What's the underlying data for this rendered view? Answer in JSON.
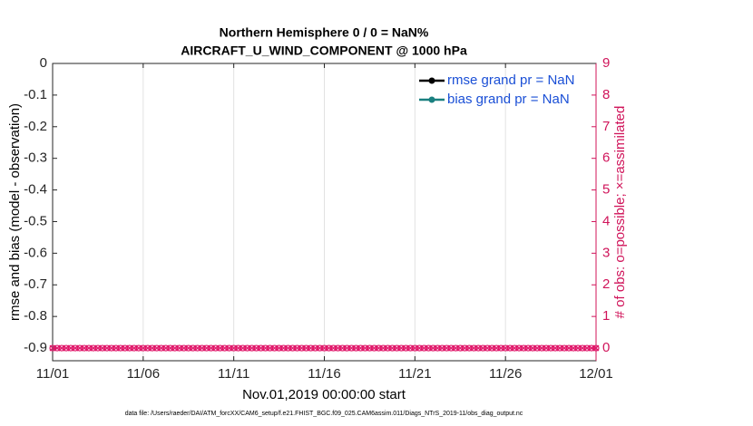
{
  "chart_data": {
    "type": "line",
    "title": [
      "Northern Hemisphere 0 / 0 = NaN%",
      "AIRCRAFT_U_WIND_COMPONENT @ 1000 hPa"
    ],
    "ylabel": "rmse and bias (model - observation)",
    "y2label": "# of obs: o=possible; ×=assimilated",
    "xlabel": "Nov.01,2019 00:00:00 start",
    "footnote": "data file: /Users/raeder/DAI/ATM_forcXX/CAM6_setup/f.e21.FHIST_BGC.f09_025.CAM6assim.011/Diags_NTrS_2019-11/obs_diag_output.nc",
    "xlim": [
      0,
      30
    ],
    "xticks": [
      {
        "value": 0,
        "label": "11/01"
      },
      {
        "value": 5,
        "label": "11/06"
      },
      {
        "value": 10,
        "label": "11/11"
      },
      {
        "value": 15,
        "label": "11/16"
      },
      {
        "value": 20,
        "label": "11/21"
      },
      {
        "value": 25,
        "label": "11/26"
      },
      {
        "value": 30,
        "label": "12/01"
      }
    ],
    "ylim": [
      -0.94,
      0
    ],
    "yticks": [
      0,
      -0.1,
      -0.2,
      -0.3,
      -0.4,
      -0.5,
      -0.6,
      -0.7,
      -0.8,
      -0.9
    ],
    "y2lim": [
      -0.4,
      9
    ],
    "y2ticks": [
      0,
      1,
      2,
      3,
      4,
      5,
      6,
      7,
      8,
      9
    ],
    "y2color": "#d0145a",
    "grid": "x",
    "legend": "upper right",
    "x": [
      0,
      0.25,
      0.5,
      0.75,
      1,
      1.25,
      1.5,
      1.75,
      2,
      2.25,
      2.5,
      2.75,
      3,
      3.25,
      3.5,
      3.75,
      4,
      4.25,
      4.5,
      4.75,
      5,
      5.25,
      5.5,
      5.75,
      6,
      6.25,
      6.5,
      6.75,
      7,
      7.25,
      7.5,
      7.75,
      8,
      8.25,
      8.5,
      8.75,
      9,
      9.25,
      9.5,
      9.75,
      10,
      10.25,
      10.5,
      10.75,
      11,
      11.25,
      11.5,
      11.75,
      12,
      12.25,
      12.5,
      12.75,
      13,
      13.25,
      13.5,
      13.75,
      14,
      14.25,
      14.5,
      14.75,
      15,
      15.25,
      15.5,
      15.75,
      16,
      16.25,
      16.5,
      16.75,
      17,
      17.25,
      17.5,
      17.75,
      18,
      18.25,
      18.5,
      18.75,
      19,
      19.25,
      19.5,
      19.75,
      20,
      20.25,
      20.5,
      20.75,
      21,
      21.25,
      21.5,
      21.75,
      22,
      22.25,
      22.5,
      22.75,
      23,
      23.25,
      23.5,
      23.75,
      24,
      24.25,
      24.5,
      24.75,
      25,
      25.25,
      25.5,
      25.75,
      26,
      26.25,
      26.5,
      26.75,
      27,
      27.25,
      27.5,
      27.75,
      28,
      28.25,
      28.5,
      28.75,
      29,
      29.25,
      29.5,
      29.75,
      30
    ],
    "series": [
      {
        "name": "rmse grand pr = NaN",
        "color": "#000000",
        "values": [
          null,
          null,
          null,
          null,
          null,
          null,
          null,
          null,
          null,
          null,
          null,
          null,
          null,
          null,
          null,
          null,
          null,
          null,
          null,
          null,
          null,
          null,
          null,
          null,
          null,
          null,
          null,
          null,
          null,
          null,
          null,
          null,
          null,
          null,
          null,
          null,
          null,
          null,
          null,
          null,
          null,
          null,
          null,
          null,
          null,
          null,
          null,
          null,
          null,
          null,
          null,
          null,
          null,
          null,
          null,
          null,
          null,
          null,
          null,
          null,
          null,
          null,
          null,
          null,
          null,
          null,
          null,
          null,
          null,
          null,
          null,
          null,
          null,
          null,
          null,
          null,
          null,
          null,
          null,
          null,
          null,
          null,
          null,
          null,
          null,
          null,
          null,
          null,
          null,
          null,
          null,
          null,
          null,
          null,
          null,
          null,
          null,
          null,
          null,
          null,
          null,
          null,
          null,
          null,
          null,
          null,
          null,
          null,
          null,
          null,
          null,
          null,
          null,
          null,
          null,
          null,
          null,
          null,
          null,
          null,
          null
        ]
      },
      {
        "name": "bias grand pr = NaN",
        "color": "#1a8080",
        "values": [
          null,
          null,
          null,
          null,
          null,
          null,
          null,
          null,
          null,
          null,
          null,
          null,
          null,
          null,
          null,
          null,
          null,
          null,
          null,
          null,
          null,
          null,
          null,
          null,
          null,
          null,
          null,
          null,
          null,
          null,
          null,
          null,
          null,
          null,
          null,
          null,
          null,
          null,
          null,
          null,
          null,
          null,
          null,
          null,
          null,
          null,
          null,
          null,
          null,
          null,
          null,
          null,
          null,
          null,
          null,
          null,
          null,
          null,
          null,
          null,
          null,
          null,
          null,
          null,
          null,
          null,
          null,
          null,
          null,
          null,
          null,
          null,
          null,
          null,
          null,
          null,
          null,
          null,
          null,
          null,
          null,
          null,
          null,
          null,
          null,
          null,
          null,
          null,
          null,
          null,
          null,
          null,
          null,
          null,
          null,
          null,
          null,
          null,
          null,
          null,
          null,
          null,
          null,
          null,
          null,
          null,
          null,
          null,
          null,
          null,
          null,
          null,
          null,
          null,
          null,
          null,
          null,
          null,
          null,
          null,
          null
        ]
      }
    ],
    "y2_series": [
      {
        "marker": "o",
        "color": "#e0186a",
        "axis": "y2",
        "values": [
          0,
          0,
          0,
          0,
          0,
          0,
          0,
          0,
          0,
          0,
          0,
          0,
          0,
          0,
          0,
          0,
          0,
          0,
          0,
          0,
          0,
          0,
          0,
          0,
          0,
          0,
          0,
          0,
          0,
          0,
          0,
          0,
          0,
          0,
          0,
          0,
          0,
          0,
          0,
          0,
          0,
          0,
          0,
          0,
          0,
          0,
          0,
          0,
          0,
          0,
          0,
          0,
          0,
          0,
          0,
          0,
          0,
          0,
          0,
          0,
          0,
          0,
          0,
          0,
          0,
          0,
          0,
          0,
          0,
          0,
          0,
          0,
          0,
          0,
          0,
          0,
          0,
          0,
          0,
          0,
          0,
          0,
          0,
          0,
          0,
          0,
          0,
          0,
          0,
          0,
          0,
          0,
          0,
          0,
          0,
          0,
          0,
          0,
          0,
          0,
          0,
          0,
          0,
          0,
          0,
          0,
          0,
          0,
          0,
          0,
          0,
          0,
          0,
          0,
          0,
          0,
          0,
          0,
          0,
          0,
          0
        ]
      },
      {
        "marker": "x",
        "color": "#e0186a",
        "axis": "y2",
        "values": [
          0,
          0,
          0,
          0,
          0,
          0,
          0,
          0,
          0,
          0,
          0,
          0,
          0,
          0,
          0,
          0,
          0,
          0,
          0,
          0,
          0,
          0,
          0,
          0,
          0,
          0,
          0,
          0,
          0,
          0,
          0,
          0,
          0,
          0,
          0,
          0,
          0,
          0,
          0,
          0,
          0,
          0,
          0,
          0,
          0,
          0,
          0,
          0,
          0,
          0,
          0,
          0,
          0,
          0,
          0,
          0,
          0,
          0,
          0,
          0,
          0,
          0,
          0,
          0,
          0,
          0,
          0,
          0,
          0,
          0,
          0,
          0,
          0,
          0,
          0,
          0,
          0,
          0,
          0,
          0,
          0,
          0,
          0,
          0,
          0,
          0,
          0,
          0,
          0,
          0,
          0,
          0,
          0,
          0,
          0,
          0,
          0,
          0,
          0,
          0,
          0,
          0,
          0,
          0,
          0,
          0,
          0,
          0,
          0,
          0,
          0,
          0,
          0,
          0,
          0,
          0,
          0,
          0,
          0,
          0,
          0
        ]
      }
    ],
    "legend_text_color": "#1a4fd6"
  }
}
